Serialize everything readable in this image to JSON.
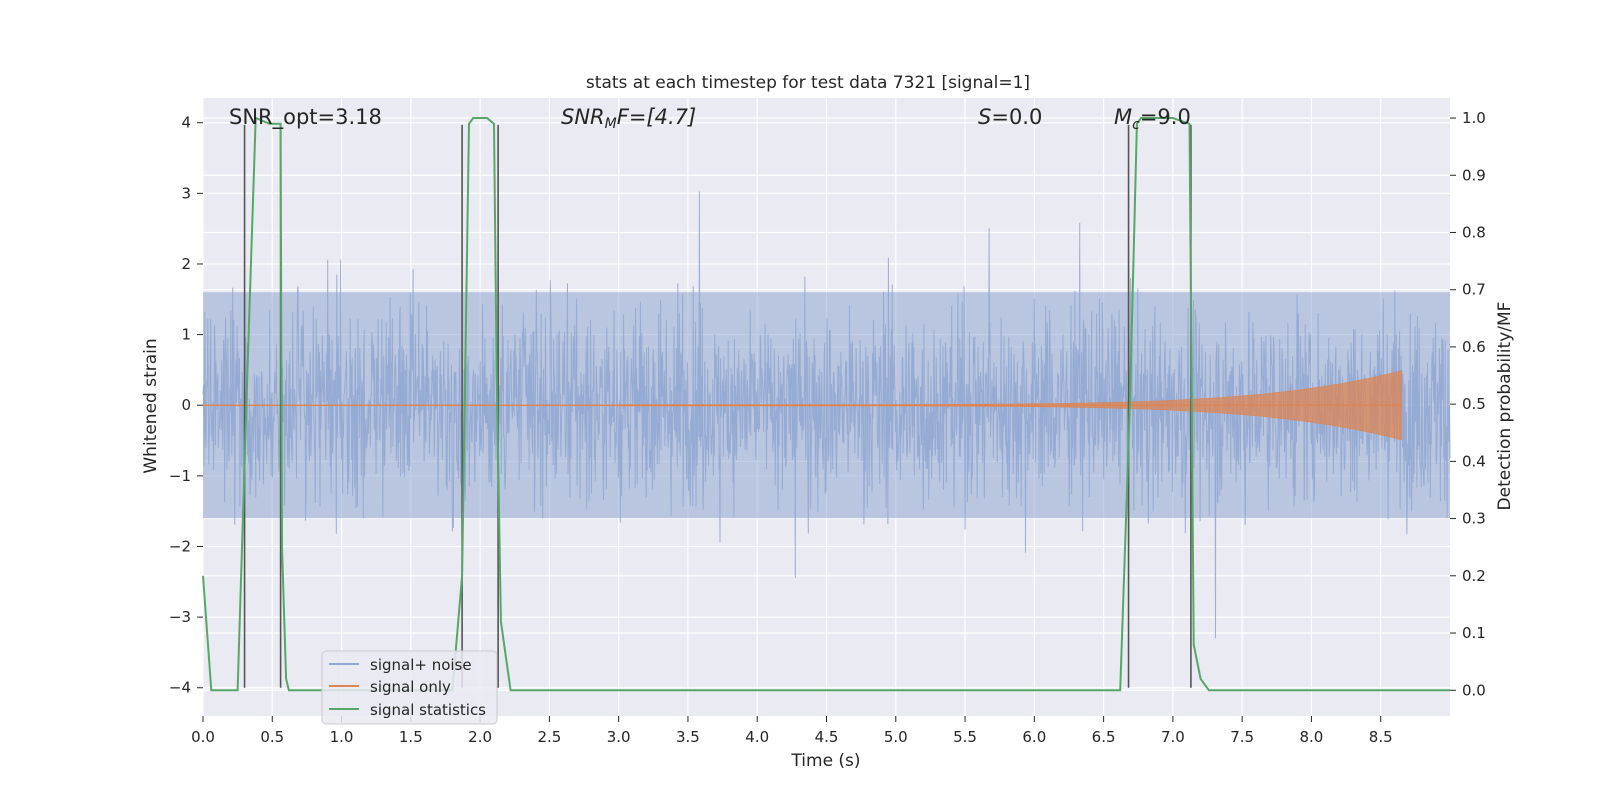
{
  "chart_data": {
    "type": "line",
    "title": "stats at each timestep for test data 7321 [signal=1]",
    "xlabel": "Time (s)",
    "ylabel": "Whitened strain",
    "ylabel_right": "Detection probability/MF",
    "xlim": [
      0.0,
      9.0
    ],
    "ylim": [
      -4.4,
      4.35
    ],
    "ylim_right": [
      -0.045,
      1.035
    ],
    "x_ticks": [
      0.0,
      0.5,
      1.0,
      1.5,
      2.0,
      2.5,
      3.0,
      3.5,
      4.0,
      4.5,
      5.0,
      5.5,
      6.0,
      6.5,
      7.0,
      7.5,
      8.0,
      8.5
    ],
    "y_ticks": [
      4,
      3,
      2,
      1,
      0,
      -1,
      -2,
      -3,
      -4
    ],
    "y_tick_labels": [
      "4",
      "3",
      "2",
      "1",
      "0",
      "−1",
      "−2",
      "−3",
      "−4"
    ],
    "y_ticks_right": [
      1.0,
      0.9,
      0.8,
      0.7,
      0.6,
      0.5,
      0.4,
      0.3,
      0.2,
      0.1,
      0.0
    ],
    "grid": true,
    "legend_position": "bottom-left",
    "annotations": {
      "snr_opt": "SNR_opt=3.18",
      "snr_mf_main": "SNR",
      "snr_mf_sub": "M",
      "snr_mf_rest": "F=[4.7]",
      "s_main": "S",
      "s_rest": "=0.0",
      "mc_main": "M",
      "mc_sub": "c",
      "mc_rest": "=9.0"
    },
    "series": [
      {
        "name": "signal+ noise",
        "color": "#92a8d1",
        "kind": "noise",
        "amplitude_envelope": 1.6,
        "peak_range": [
          -3.3,
          3.05
        ]
      },
      {
        "name": "signal only",
        "color": "#dd8452",
        "kind": "chirp",
        "start": 3.0,
        "end": 8.65,
        "peak_amplitude": 0.48
      },
      {
        "name": "signal statistics",
        "color": "#55a868",
        "axis": "right",
        "x": [
          0.0,
          0.06,
          0.25,
          0.32,
          0.38,
          0.48,
          0.53,
          0.56,
          0.57,
          0.6,
          0.62,
          0.64,
          1.8,
          1.87,
          1.92,
          1.95,
          2.0,
          2.05,
          2.1,
          2.12,
          2.15,
          2.22,
          2.27,
          2.33,
          6.62,
          6.69,
          6.74,
          6.77,
          6.8,
          6.9,
          7.0,
          7.12,
          7.15,
          7.2,
          7.26,
          9.0
        ],
        "y": [
          0.2,
          0.0,
          0.0,
          0.55,
          1.0,
          0.99,
          0.99,
          0.99,
          0.25,
          0.02,
          0.0,
          0.0,
          0.0,
          0.2,
          0.99,
          1.0,
          1.0,
          1.0,
          0.99,
          0.55,
          0.12,
          0.0,
          0.0,
          0.0,
          0.0,
          0.5,
          0.99,
          1.0,
          1.0,
          1.0,
          1.0,
          0.99,
          0.08,
          0.02,
          0.0,
          0.0
        ]
      }
    ],
    "vertical_markers": [
      0.3,
      0.56,
      1.87,
      2.13,
      6.68,
      7.13
    ]
  }
}
